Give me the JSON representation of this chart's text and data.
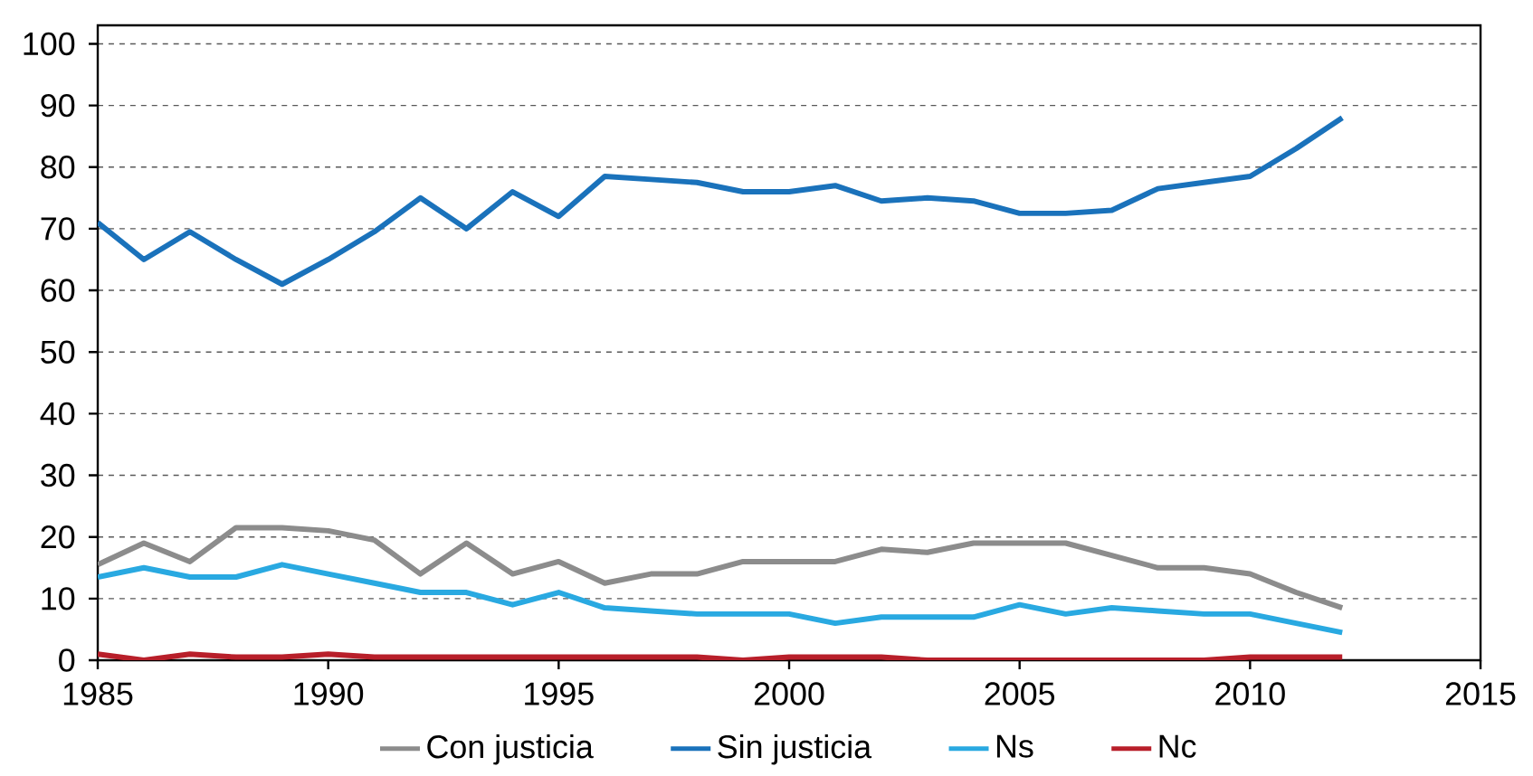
{
  "chart_data": {
    "type": "line",
    "x": [
      1985,
      1986,
      1987,
      1988,
      1989,
      1990,
      1991,
      1992,
      1993,
      1994,
      1995,
      1996,
      1997,
      1998,
      1999,
      2000,
      2001,
      2002,
      2003,
      2004,
      2005,
      2006,
      2007,
      2008,
      2009,
      2010,
      2011,
      2012
    ],
    "series": [
      {
        "name": "Con justicia",
        "color": "#8c8c8c",
        "values": [
          15.5,
          19,
          16,
          21.5,
          21.5,
          21,
          19.5,
          14,
          19,
          14,
          16,
          12.5,
          14,
          14,
          16,
          16,
          16,
          18,
          17.5,
          19,
          19,
          19,
          17,
          15,
          15,
          14,
          11,
          8.5
        ]
      },
      {
        "name": "Sin justicia",
        "color": "#1a72bb",
        "values": [
          71,
          65,
          69.5,
          65,
          61,
          65,
          69.5,
          75,
          70,
          76,
          72,
          78.5,
          78,
          77.5,
          76,
          76,
          77,
          74.5,
          75,
          74.5,
          72.5,
          72.5,
          73,
          76.5,
          77.5,
          78.5,
          83,
          88
        ]
      },
      {
        "name": "Ns",
        "color": "#29a9e1",
        "values": [
          13.5,
          15,
          13.5,
          13.5,
          15.5,
          14,
          12.5,
          11,
          11,
          9,
          11,
          8.5,
          8,
          7.5,
          7.5,
          7.5,
          6,
          7,
          7,
          7,
          9,
          7.5,
          8.5,
          8,
          7.5,
          7.5,
          6,
          4.5
        ]
      },
      {
        "name": "Nc",
        "color": "#b81f2a",
        "values": [
          1,
          0,
          1,
          0.5,
          0.5,
          1,
          0.5,
          0.5,
          0.5,
          0.5,
          0.5,
          0.5,
          0.5,
          0.5,
          0,
          0.5,
          0.5,
          0.5,
          0,
          0,
          0,
          0,
          0,
          0,
          0,
          0.5,
          0.5,
          0.5
        ]
      }
    ],
    "xlim": [
      1985,
      2015
    ],
    "xticks": [
      1985,
      1990,
      1995,
      2000,
      2005,
      2010,
      2015
    ],
    "ylim": [
      0,
      103
    ],
    "yticks": [
      0,
      10,
      20,
      30,
      40,
      50,
      60,
      70,
      80,
      90,
      100
    ],
    "grid": "y",
    "legend": "bottom",
    "line_style": "solid",
    "marker": "none"
  }
}
